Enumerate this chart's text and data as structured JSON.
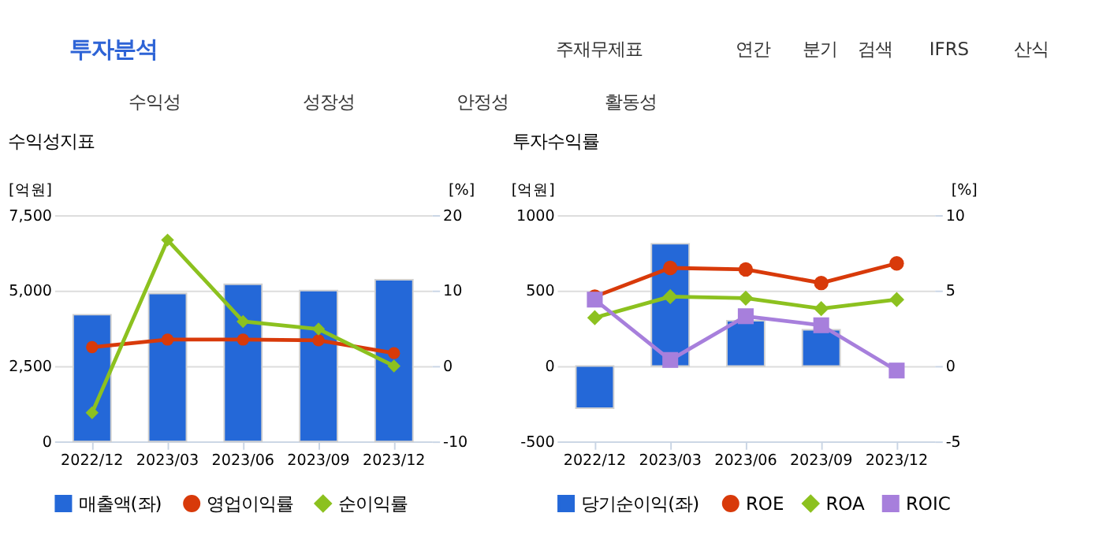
{
  "chart_data": [
    {
      "type": "other",
      "annotations": [
        "투자분석",
        "주재무제표",
        "연간",
        "분기",
        "검색",
        "IFRS",
        "산식",
        "수익성",
        "성장성",
        "안정성",
        "활동성"
      ]
    },
    {
      "type": "bar",
      "title": "수익성지표",
      "ylabel": "[억원]",
      "y2label": "[%]",
      "categories": [
        "2022/12",
        "2023/03",
        "2023/06",
        "2023/09",
        "2023/12"
      ],
      "series": [
        {
          "name": "매출액(좌)",
          "type": "bar",
          "color": "#2468d8",
          "values": [
            4200,
            4900,
            5210,
            5000,
            5360
          ]
        },
        {
          "name": "영업이익률",
          "type": "line",
          "axis": "y2",
          "color": "#d83a0a",
          "marker": "circle",
          "values": [
            2.5,
            3.5,
            3.5,
            3.4,
            1.7
          ]
        },
        {
          "name": "순이익률",
          "type": "line",
          "axis": "y2",
          "color": "#8cc11f",
          "marker": "diamond",
          "values": [
            -6.2,
            16.7,
            5.9,
            4.9,
            0.0
          ]
        }
      ],
      "ylim": [
        0,
        7500
      ],
      "yticks": [
        0,
        {
          "value": 2500,
          "label": "2,500"
        },
        {
          "value": 5000,
          "label": "5,000"
        },
        {
          "value": 7500,
          "label": "7,500"
        }
      ],
      "y2lim": [
        -10,
        20
      ],
      "y2ticks": [
        -10,
        0,
        10,
        20
      ],
      "grid": "y",
      "legend": "bottom"
    },
    {
      "type": "bar",
      "title": "투자수익률",
      "ylabel": "[억원]",
      "y2label": "[%]",
      "categories": [
        "2022/12",
        "2023/03",
        "2023/06",
        "2023/09",
        "2023/12"
      ],
      "series": [
        {
          "name": "당기순이익(좌)",
          "type": "bar",
          "color": "#2468d8",
          "values": [
            -280,
            810,
            300,
            240,
            null
          ]
        },
        {
          "name": "ROE",
          "type": "line",
          "axis": "y2",
          "color": "#d83a0a",
          "marker": "circle",
          "values": [
            4.6,
            6.5,
            6.4,
            5.5,
            6.8
          ]
        },
        {
          "name": "ROA",
          "type": "line",
          "axis": "y2",
          "color": "#8cc11f",
          "marker": "diamond",
          "values": [
            3.2,
            4.6,
            4.5,
            3.8,
            4.4
          ]
        },
        {
          "name": "ROIC",
          "type": "line",
          "axis": "y2",
          "color": "#a77fdc",
          "marker": "square",
          "values": [
            4.4,
            0.4,
            3.3,
            2.7,
            -0.3
          ]
        }
      ],
      "ylim": [
        -500,
        1000
      ],
      "yticks": [
        -500,
        0,
        500,
        1000
      ],
      "y2lim": [
        -5,
        10
      ],
      "y2ticks": [
        -5,
        0,
        5,
        10
      ],
      "grid": "y",
      "legend": "bottom"
    }
  ]
}
